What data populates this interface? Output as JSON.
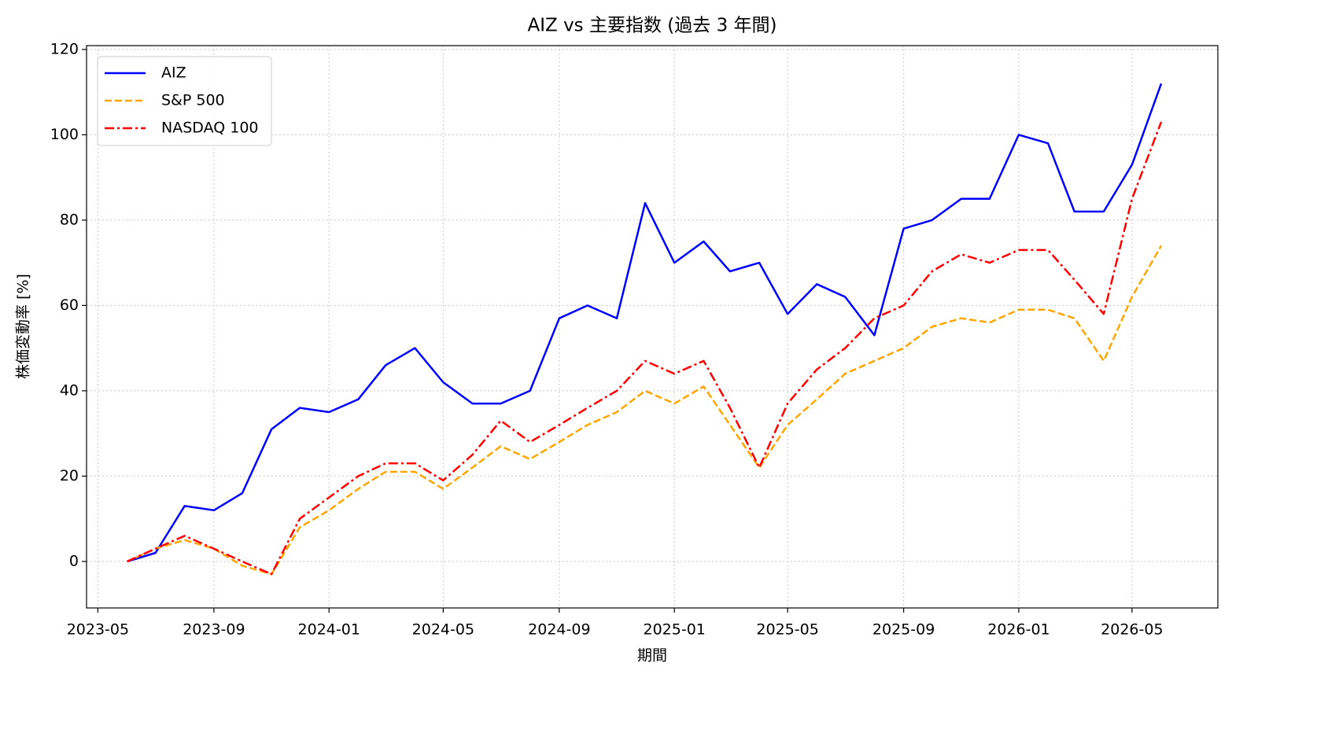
{
  "chart_data": {
    "type": "line",
    "title": "AIZ vs 主要指数 (過去 3 年間)",
    "x_label": "期間",
    "y_label": "株価変動率 [%]",
    "x": [
      "2023-06",
      "2023-07",
      "2023-08",
      "2023-09",
      "2023-10",
      "2023-11",
      "2023-12",
      "2024-01",
      "2024-02",
      "2024-03",
      "2024-04",
      "2024-05",
      "2024-06",
      "2024-07",
      "2024-08",
      "2024-09",
      "2024-10",
      "2024-11",
      "2024-12",
      "2025-01",
      "2025-02",
      "2025-03",
      "2025-04",
      "2025-05",
      "2025-06",
      "2025-07",
      "2025-08",
      "2025-09",
      "2025-10",
      "2025-11",
      "2025-12",
      "2026-01",
      "2026-02",
      "2026-03",
      "2026-04",
      "2026-05",
      "2026-06"
    ],
    "series": [
      {
        "name": "AIZ",
        "color": "#0000ff",
        "linestyle": "solid",
        "values": [
          0,
          2,
          13,
          12,
          16,
          31,
          36,
          35,
          38,
          46,
          50,
          42,
          37,
          37,
          40,
          57,
          60,
          57,
          84,
          70,
          75,
          68,
          70,
          58,
          65,
          62,
          53,
          78,
          80,
          85,
          85,
          100,
          98,
          82,
          82,
          93,
          112
        ]
      },
      {
        "name": "S&P 500",
        "color": "#ffa500",
        "linestyle": "dashed",
        "values": [
          0,
          3,
          5,
          3,
          -1,
          -3,
          8,
          12,
          17,
          21,
          21,
          17,
          22,
          27,
          24,
          28,
          32,
          35,
          40,
          37,
          41,
          32,
          22,
          32,
          38,
          44,
          47,
          50,
          55,
          57,
          56,
          59,
          59,
          57,
          47,
          62,
          74
        ]
      },
      {
        "name": "NASDAQ 100",
        "color": "#ff0000",
        "linestyle": "dashdot",
        "values": [
          0,
          3,
          6,
          3,
          0,
          -3,
          10,
          15,
          20,
          23,
          23,
          19,
          25,
          33,
          28,
          32,
          36,
          40,
          47,
          44,
          47,
          36,
          22,
          37,
          45,
          50,
          57,
          60,
          68,
          72,
          70,
          73,
          73,
          66,
          58,
          85,
          103
        ]
      }
    ],
    "xticks": [
      "2023-05",
      "2023-09",
      "2024-01",
      "2024-05",
      "2024-09",
      "2025-01",
      "2025-05",
      "2025-09",
      "2026-01",
      "2026-05"
    ],
    "ylim": [
      -10.9,
      120.9
    ],
    "yticks": [
      0,
      20,
      40,
      60,
      80,
      100,
      120
    ],
    "grid": true,
    "legend": "upper left"
  }
}
